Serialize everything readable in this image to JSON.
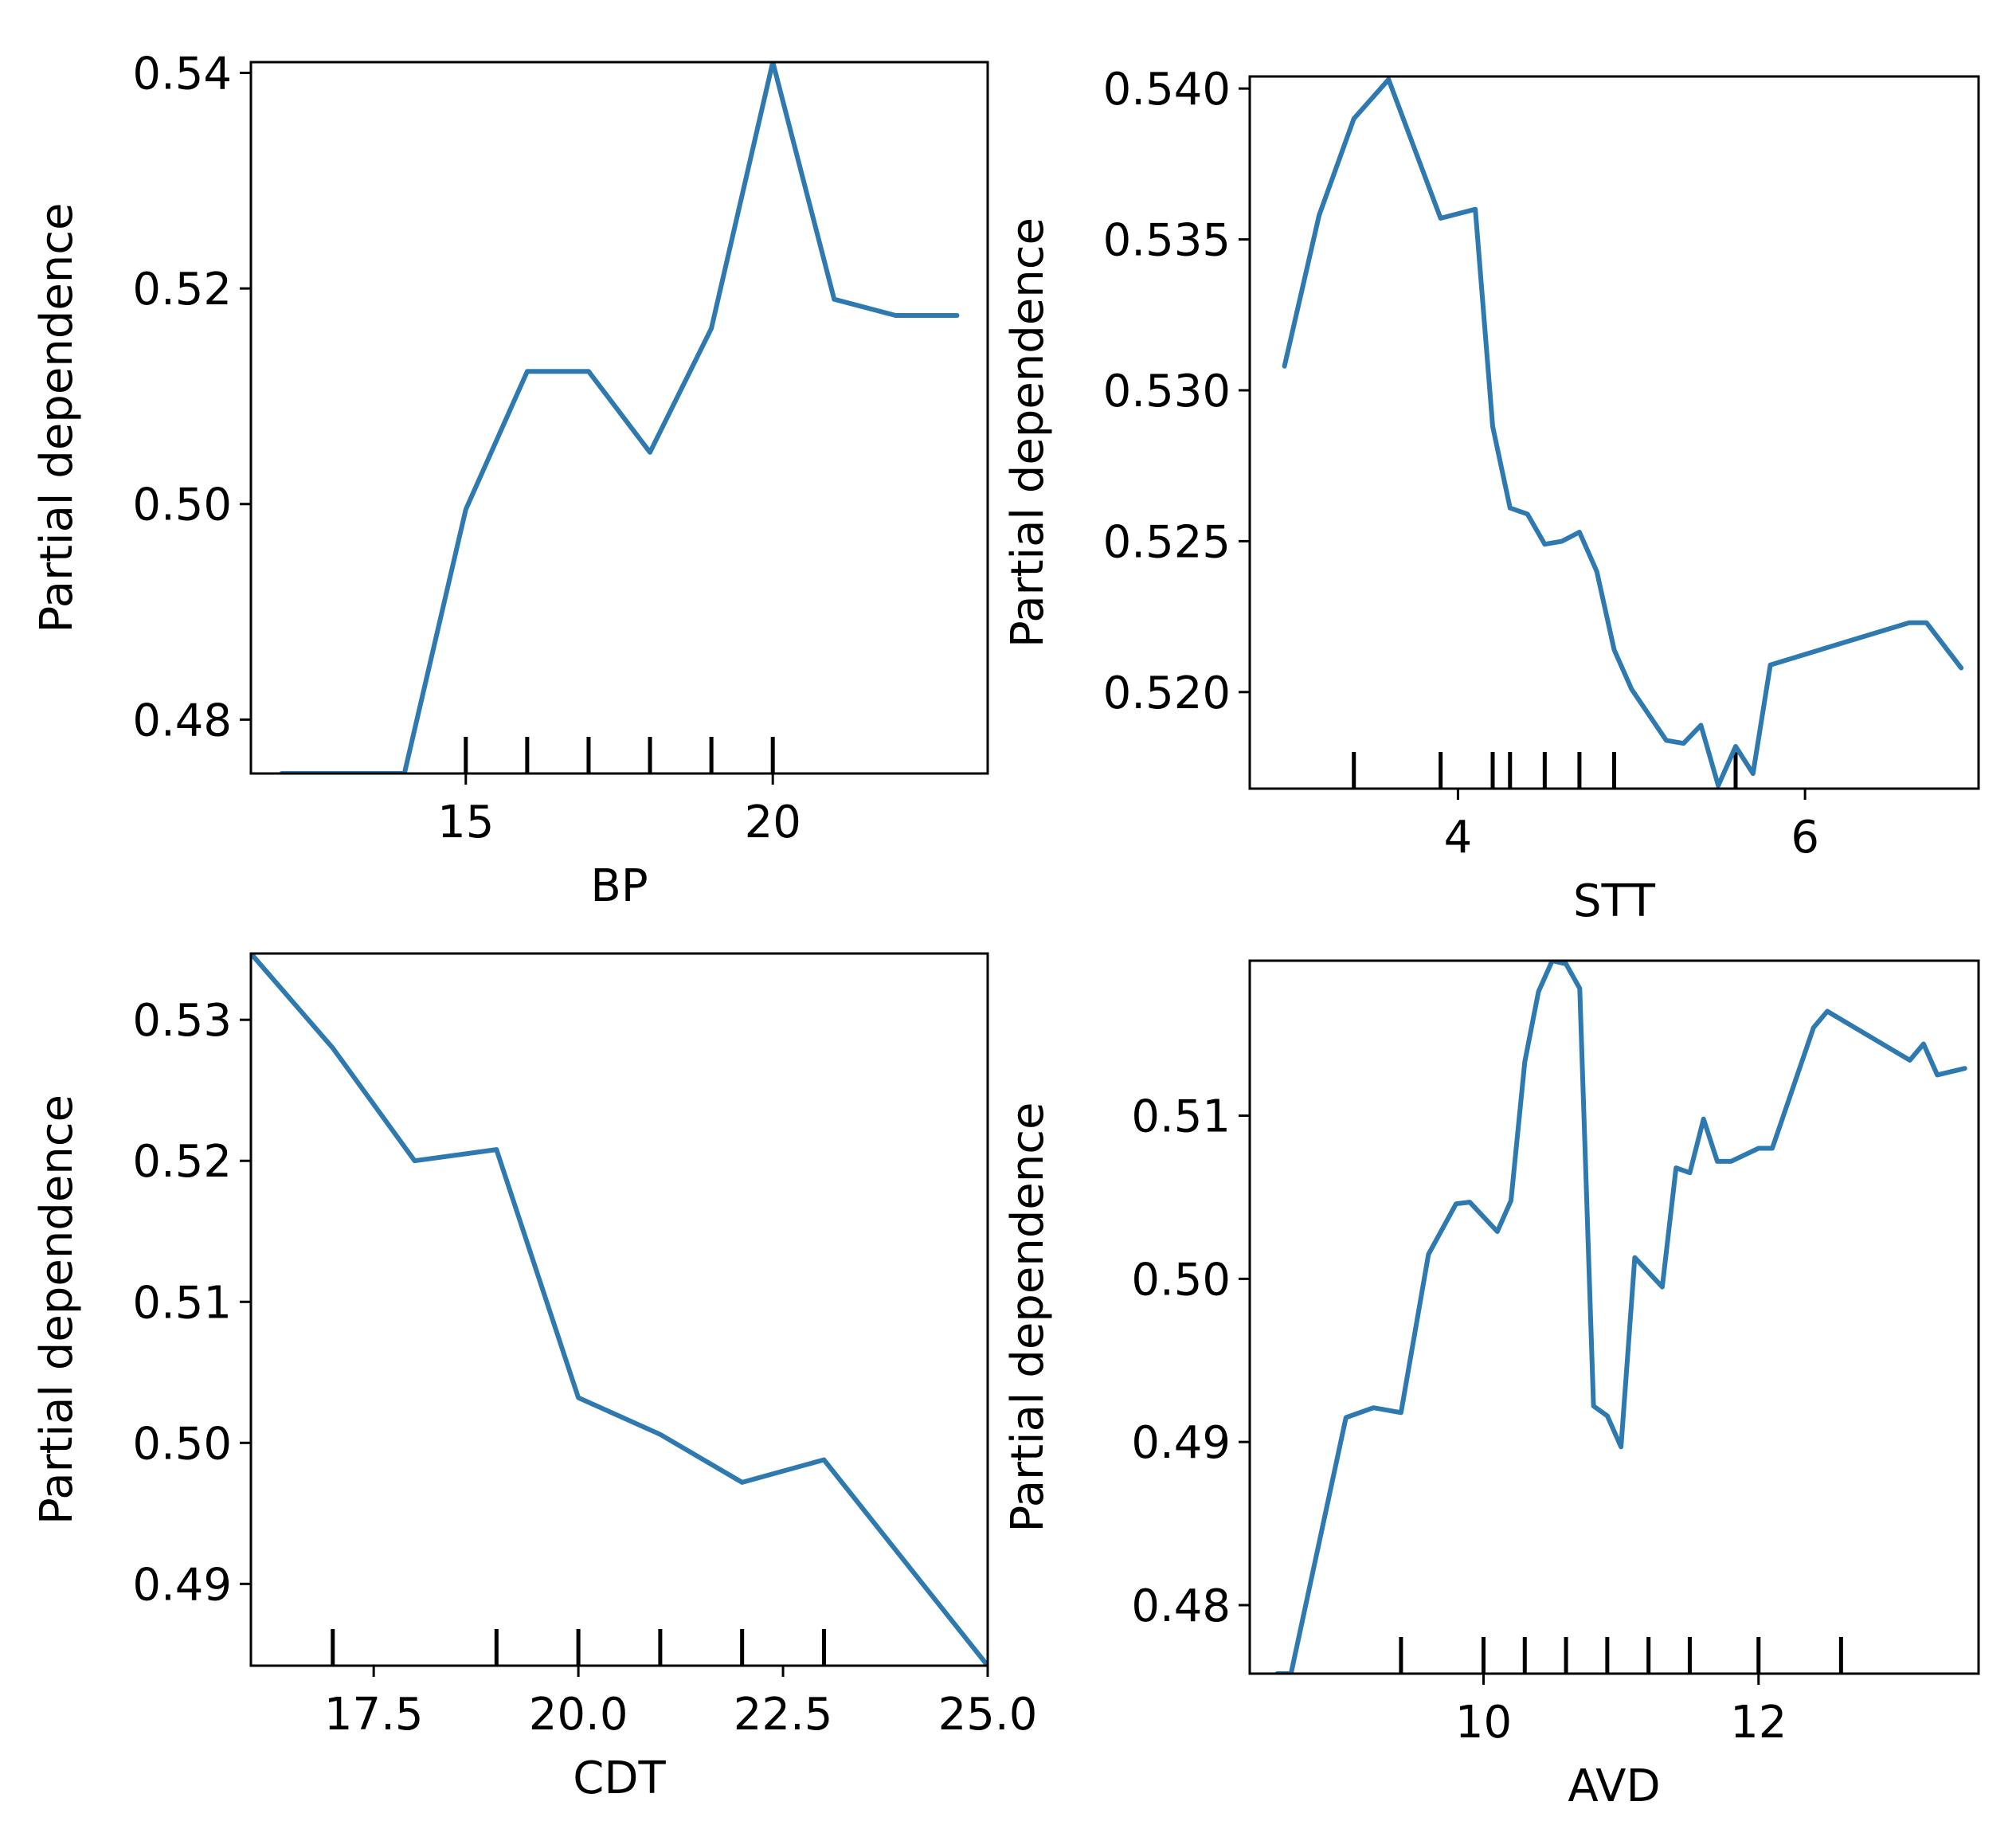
{
  "chart_data": [
    {
      "type": "line",
      "xlabel": "BP",
      "ylabel": "Partial dependence",
      "xlim": [
        11.5,
        23.5
      ],
      "ylim": [
        0.475,
        0.541
      ],
      "xticks": [
        15,
        20
      ],
      "xtick_labels": [
        "15",
        "20"
      ],
      "yticks": [
        0.48,
        0.5,
        0.52,
        0.54
      ],
      "ytick_labels": [
        "0.48",
        "0.50",
        "0.52",
        "0.54"
      ],
      "deciles": [
        15,
        16,
        17,
        18,
        19,
        20
      ],
      "series": [
        {
          "color": "#2e7ab0",
          "x": [
            12,
            14,
            15,
            16,
            17,
            18,
            19,
            20,
            21,
            22,
            23
          ],
          "y": [
            0.475,
            0.475,
            0.4995,
            0.5123,
            0.5123,
            0.5048,
            0.5163,
            0.541,
            0.519,
            0.5175,
            0.5175
          ]
        }
      ],
      "grid": false
    },
    {
      "type": "line",
      "xlabel": "STT",
      "ylabel": "Partial dependence",
      "xlim": [
        2.8,
        7.0
      ],
      "ylim": [
        0.5168,
        0.5404
      ],
      "xticks": [
        4,
        6
      ],
      "xtick_labels": [
        "4",
        "6"
      ],
      "yticks": [
        0.52,
        0.525,
        0.53,
        0.535,
        0.54
      ],
      "ytick_labels": [
        "0.520",
        "0.525",
        "0.530",
        "0.535",
        "0.540"
      ],
      "deciles": [
        3.4,
        3.9,
        4.2,
        4.3,
        4.5,
        4.7,
        4.9,
        5.6
      ],
      "series": [
        {
          "color": "#2e7ab0",
          "x": [
            3.0,
            3.2,
            3.4,
            3.6,
            3.9,
            4.1,
            4.2,
            4.3,
            4.4,
            4.5,
            4.6,
            4.7,
            4.8,
            4.9,
            5.0,
            5.2,
            5.3,
            5.4,
            5.5,
            5.6,
            5.7,
            5.8,
            6.6,
            6.7,
            6.9
          ],
          "y": [
            0.5308,
            0.5358,
            0.539,
            0.5403,
            0.5357,
            0.536,
            0.5288,
            0.5261,
            0.5259,
            0.5249,
            0.525,
            0.5253,
            0.524,
            0.5214,
            0.5201,
            0.5184,
            0.5183,
            0.5189,
            0.5169,
            0.5182,
            0.5173,
            0.5209,
            0.5223,
            0.5223,
            0.5208
          ]
        }
      ],
      "grid": false
    },
    {
      "type": "line",
      "xlabel": "CDT",
      "ylabel": "Partial dependence",
      "xlim": [
        16,
        25
      ],
      "ylim": [
        0.4842,
        0.5347
      ],
      "xticks": [
        17.5,
        20.0,
        22.5,
        25.0
      ],
      "xtick_labels": [
        "17.5",
        "20.0",
        "22.5",
        "25.0"
      ],
      "yticks": [
        0.49,
        0.5,
        0.51,
        0.52,
        0.53
      ],
      "ytick_labels": [
        "0.49",
        "0.50",
        "0.51",
        "0.52",
        "0.53"
      ],
      "deciles": [
        17,
        19,
        20,
        21,
        22,
        23
      ],
      "series": [
        {
          "color": "#2e7ab0",
          "x": [
            16,
            17,
            18,
            19,
            20,
            21,
            22,
            23,
            25
          ],
          "y": [
            0.5347,
            0.528,
            0.52,
            0.5208,
            0.5032,
            0.5006,
            0.4972,
            0.4988,
            0.4842
          ]
        }
      ],
      "grid": false
    },
    {
      "type": "line",
      "xlabel": "AVD",
      "ylabel": "Partial dependence",
      "xlim": [
        8.3,
        13.6
      ],
      "ylim": [
        0.4758,
        0.5195
      ],
      "xticks": [
        10,
        12
      ],
      "xtick_labels": [
        "10",
        "12"
      ],
      "yticks": [
        0.48,
        0.49,
        0.5,
        0.51
      ],
      "ytick_labels": [
        "0.48",
        "0.49",
        "0.50",
        "0.51"
      ],
      "deciles": [
        9.4,
        10.0,
        10.3,
        10.6,
        10.9,
        11.2,
        11.5,
        12.0,
        12.6
      ],
      "series": [
        {
          "color": "#2e7ab0",
          "x": [
            8.5,
            8.6,
            9.0,
            9.2,
            9.4,
            9.6,
            9.8,
            9.9,
            10.1,
            10.2,
            10.3,
            10.4,
            10.5,
            10.6,
            10.7,
            10.8,
            10.9,
            11.0,
            11.1,
            11.3,
            11.4,
            11.5,
            11.6,
            11.7,
            11.8,
            12.0,
            12.1,
            12.4,
            12.5,
            13.1,
            13.2,
            13.3,
            13.5
          ],
          "y": [
            0.4758,
            0.4758,
            0.4915,
            0.4921,
            0.4918,
            0.5015,
            0.5046,
            0.5047,
            0.5029,
            0.5048,
            0.5133,
            0.5176,
            0.5195,
            0.5193,
            0.5178,
            0.4922,
            0.4916,
            0.4897,
            0.5013,
            0.4995,
            0.5068,
            0.5065,
            0.5098,
            0.5072,
            0.5072,
            0.508,
            0.508,
            0.5154,
            0.5164,
            0.5134,
            0.5144,
            0.5125,
            0.5129
          ]
        }
      ],
      "grid": false
    }
  ]
}
